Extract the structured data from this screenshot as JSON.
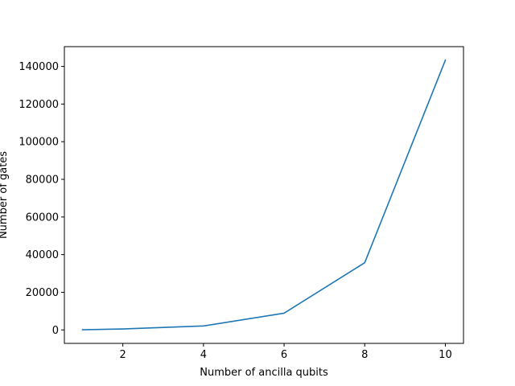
{
  "chart_data": {
    "type": "line",
    "title": "",
    "xlabel": "Number of ancilla qubits",
    "ylabel": "Number of gates",
    "xlim": [
      0.55,
      10.45
    ],
    "ylim": [
      -7150,
      150500
    ],
    "x_ticks": [
      2,
      4,
      6,
      8,
      10
    ],
    "y_ticks": [
      0,
      20000,
      40000,
      60000,
      80000,
      100000,
      120000,
      140000
    ],
    "grid": false,
    "legend": "none",
    "series": [
      {
        "color": "#1f77b4",
        "x": [
          1,
          2,
          4,
          6,
          8,
          10
        ],
        "values": [
          100,
          500,
          2100,
          8900,
          35700,
          143300
        ]
      }
    ]
  }
}
